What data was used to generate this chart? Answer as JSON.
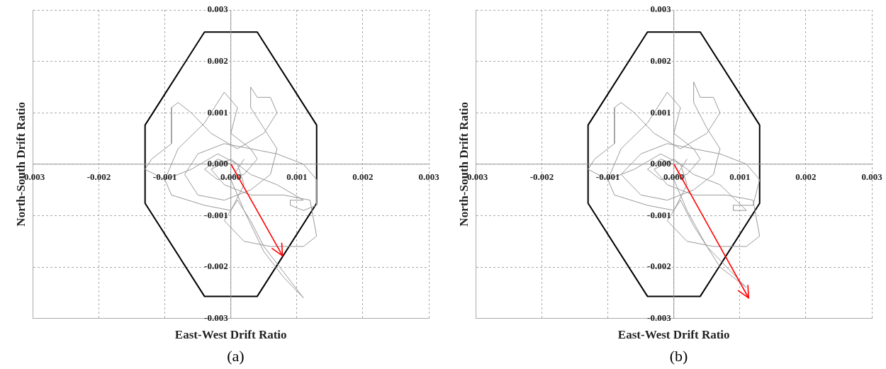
{
  "chart_data": [
    {
      "type": "line",
      "xlabel": "East-West Drift Ratio",
      "ylabel": "North-South Drift Ratio",
      "annotations": [
        "(a)"
      ],
      "marker": "none",
      "grid": true,
      "legend": false,
      "xlim": [
        -0.003,
        0.003
      ],
      "ylim": [
        -0.003,
        0.003
      ],
      "xticks": [
        -0.003,
        -0.002,
        -0.001,
        {
          "value": 0,
          "label": "0.000"
        },
        0.001,
        0.002,
        0.003
      ],
      "yticks": [
        -0.003,
        -0.002,
        -0.001,
        {
          "value": 0,
          "label": "0.000"
        },
        0.001,
        0.002,
        0.003
      ],
      "series": [
        {
          "color": "#999999",
          "x": [
            0,
            -0.0002,
            -0.0004,
            -0.0002,
            0.0002,
            0.0004,
            0.0003,
            -0.0001,
            -0.0005,
            -0.0007,
            -0.0005,
            -0.0001,
            0.0003,
            0.0006,
            0.0007,
            0.0005,
            0.0003,
            0.0003,
            0.0004,
            0.0006,
            0.0007,
            0.0005,
            0.0001,
            -0.0003,
            -0.0006,
            -0.0008,
            -0.0009,
            -0.0009,
            -0.0012,
            -0.0013,
            -0.001,
            -0.0006,
            -0.0002,
            0.0001,
            0.0002,
            0,
            -0.0004,
            -0.0009,
            -0.001,
            -0.0008,
            -0.0004,
            -0.0001,
            0.0001,
            0,
            0.0003,
            0.0007,
            0.0011,
            0.0013,
            0.0013,
            0.0011,
            0.0009,
            0.0009,
            0.0011,
            0.0007,
            0.0003,
            0,
            -0.0003,
            -0.0001,
            0.0003,
            0.0008,
            0.0012,
            0.0013,
            0.0011,
            0.0006,
            0.0002,
            -0.0001,
            0.0001,
            0.0003,
            0.0005,
            0.0008,
            0.0011,
            0.0008,
            0.0005,
            0.0002,
            0,
            0.0002
          ],
          "values": [
            0,
            0.0001,
            -0.0001,
            -0.0003,
            -0.0002,
            0.0001,
            0.0003,
            0.0004,
            0.0002,
            -0.0002,
            -0.0006,
            -0.0007,
            -0.0005,
            -0.0002,
            0.0003,
            0.0007,
            0.0011,
            0.0015,
            0.0013,
            0.0013,
            0.001,
            0.0006,
            0.0003,
            0.0006,
            0.001,
            0.0012,
            0.0011,
            0.0004,
            0.0001,
            -0.0001,
            -0.0003,
            -0.0001,
            0.0002,
            0,
            -0.0004,
            -0.0009,
            -0.0008,
            -0.0006,
            -0.0003,
            0.0003,
            0.0008,
            0.0014,
            0.0011,
            0.0006,
            0.0003,
            0.0002,
            0,
            -0.0003,
            -0.0008,
            -0.0009,
            -0.0008,
            -0.0007,
            -0.0007,
            -0.0004,
            -0.0002,
            0.0001,
            -0.0001,
            -0.0004,
            -0.0006,
            -0.0006,
            -0.0007,
            -0.0014,
            -0.0016,
            -0.0016,
            -0.0015,
            -0.0011,
            -0.0007,
            -0.0011,
            -0.0016,
            -0.0021,
            -0.0026,
            -0.0022,
            -0.0017,
            -0.0009,
            -0.0003,
            0.0001
          ]
        },
        {
          "color": "#000000",
          "x": [
            -0.0013,
            -0.0013,
            -0.0004,
            0.0004,
            0.0013,
            0.0013,
            0,
            -0.0013,
            -0.0013,
            -0.0004,
            0.0004,
            0.0013,
            0.0013
          ],
          "values": [
            0,
            0.00076,
            0.00257,
            0.00257,
            0.00076,
            0,
            null,
            0,
            -0.00076,
            -0.00257,
            -0.00257,
            -0.00076,
            0
          ]
        }
      ]
    },
    {
      "type": "line",
      "xlabel": "East-West Drift Ratio",
      "ylabel": "North-South Drift Ratio",
      "annotations": [
        "(b)"
      ],
      "marker": "none",
      "grid": true,
      "legend": false,
      "xlim": [
        -0.003,
        0.003
      ],
      "ylim": [
        -0.003,
        0.003
      ],
      "xticks": [
        -0.003,
        -0.002,
        -0.001,
        {
          "value": 0,
          "label": "0.000"
        },
        0.001,
        0.002,
        0.003
      ],
      "yticks": [
        -0.003,
        -0.002,
        -0.001,
        {
          "value": 0,
          "label": "0.000"
        },
        0.001,
        0.002,
        0.003
      ],
      "series": [
        {
          "color": "#999999",
          "x": [
            0,
            -0.0002,
            -0.0004,
            -0.0002,
            0.0002,
            0.0004,
            0.0003,
            -0.0001,
            -0.0005,
            -0.0008,
            -0.0005,
            -0.0001,
            0.0003,
            0.0006,
            0.0007,
            0.0005,
            0.0003,
            0.0003,
            0.0004,
            0.0006,
            0.0007,
            0.0005,
            0.0001,
            -0.0003,
            -0.0006,
            -0.0008,
            -0.0009,
            -0.0009,
            -0.0012,
            -0.0013,
            -0.001,
            -0.0006,
            -0.0002,
            0.0001,
            0.0002,
            0,
            -0.0004,
            -0.0009,
            -0.001,
            -0.0008,
            -0.0004,
            -0.0001,
            0.0001,
            0,
            0.0003,
            0.0007,
            0.0011,
            0.0013,
            0.0012,
            0.0009,
            0.0009,
            0.0011,
            0.0007,
            0.0003,
            0,
            -0.0003,
            -0.0001,
            0.0003,
            0.0008,
            0.0012,
            0.0013,
            0.0011,
            0.0006,
            0.0002,
            -0.0001,
            0.0001,
            0.0003,
            0.0005,
            0.0007,
            0.0009,
            0.0011,
            0.0008,
            0.0005,
            0.0002,
            0,
            0.0002
          ],
          "values": [
            0,
            0.0001,
            -0.0001,
            -0.0003,
            -0.0002,
            0.0001,
            0.0003,
            0.0004,
            0.0002,
            -0.0002,
            -0.0006,
            -0.0007,
            -0.0005,
            -0.0002,
            0.0003,
            0.0007,
            0.0012,
            0.0016,
            0.0013,
            0.0013,
            0.001,
            0.0006,
            0.0003,
            0.0006,
            0.001,
            0.0012,
            0.0011,
            0.0004,
            0.0001,
            -0.0001,
            -0.0003,
            -0.0001,
            0.0002,
            0,
            -0.0004,
            -0.0009,
            -0.0008,
            -0.0006,
            -0.0003,
            0.0003,
            0.0008,
            0.0014,
            0.0011,
            0.0006,
            0.0003,
            0.0002,
            0,
            -0.0003,
            -0.0008,
            -0.0008,
            -0.0009,
            -0.0009,
            -0.0004,
            -0.0002,
            0.0001,
            -0.0001,
            -0.0004,
            -0.0006,
            -0.0006,
            -0.0007,
            -0.0014,
            -0.0016,
            -0.0016,
            -0.0015,
            -0.0011,
            -0.0007,
            -0.0012,
            -0.0016,
            -0.002,
            -0.0022,
            -0.0024,
            -0.002,
            -0.0016,
            -0.0009,
            -0.0003,
            0.0001
          ]
        },
        {
          "color": "#000000",
          "x": [
            -0.0013,
            -0.0013,
            -0.0004,
            0.0004,
            0.0013,
            0.0013,
            0,
            -0.0013,
            -0.0013,
            -0.0004,
            0.0004,
            0.0013,
            0.0013
          ],
          "values": [
            0,
            0.00076,
            0.00257,
            0.00257,
            0.00076,
            0,
            null,
            0,
            -0.00076,
            -0.00257,
            -0.00257,
            -0.00076,
            0
          ]
        }
      ]
    }
  ]
}
